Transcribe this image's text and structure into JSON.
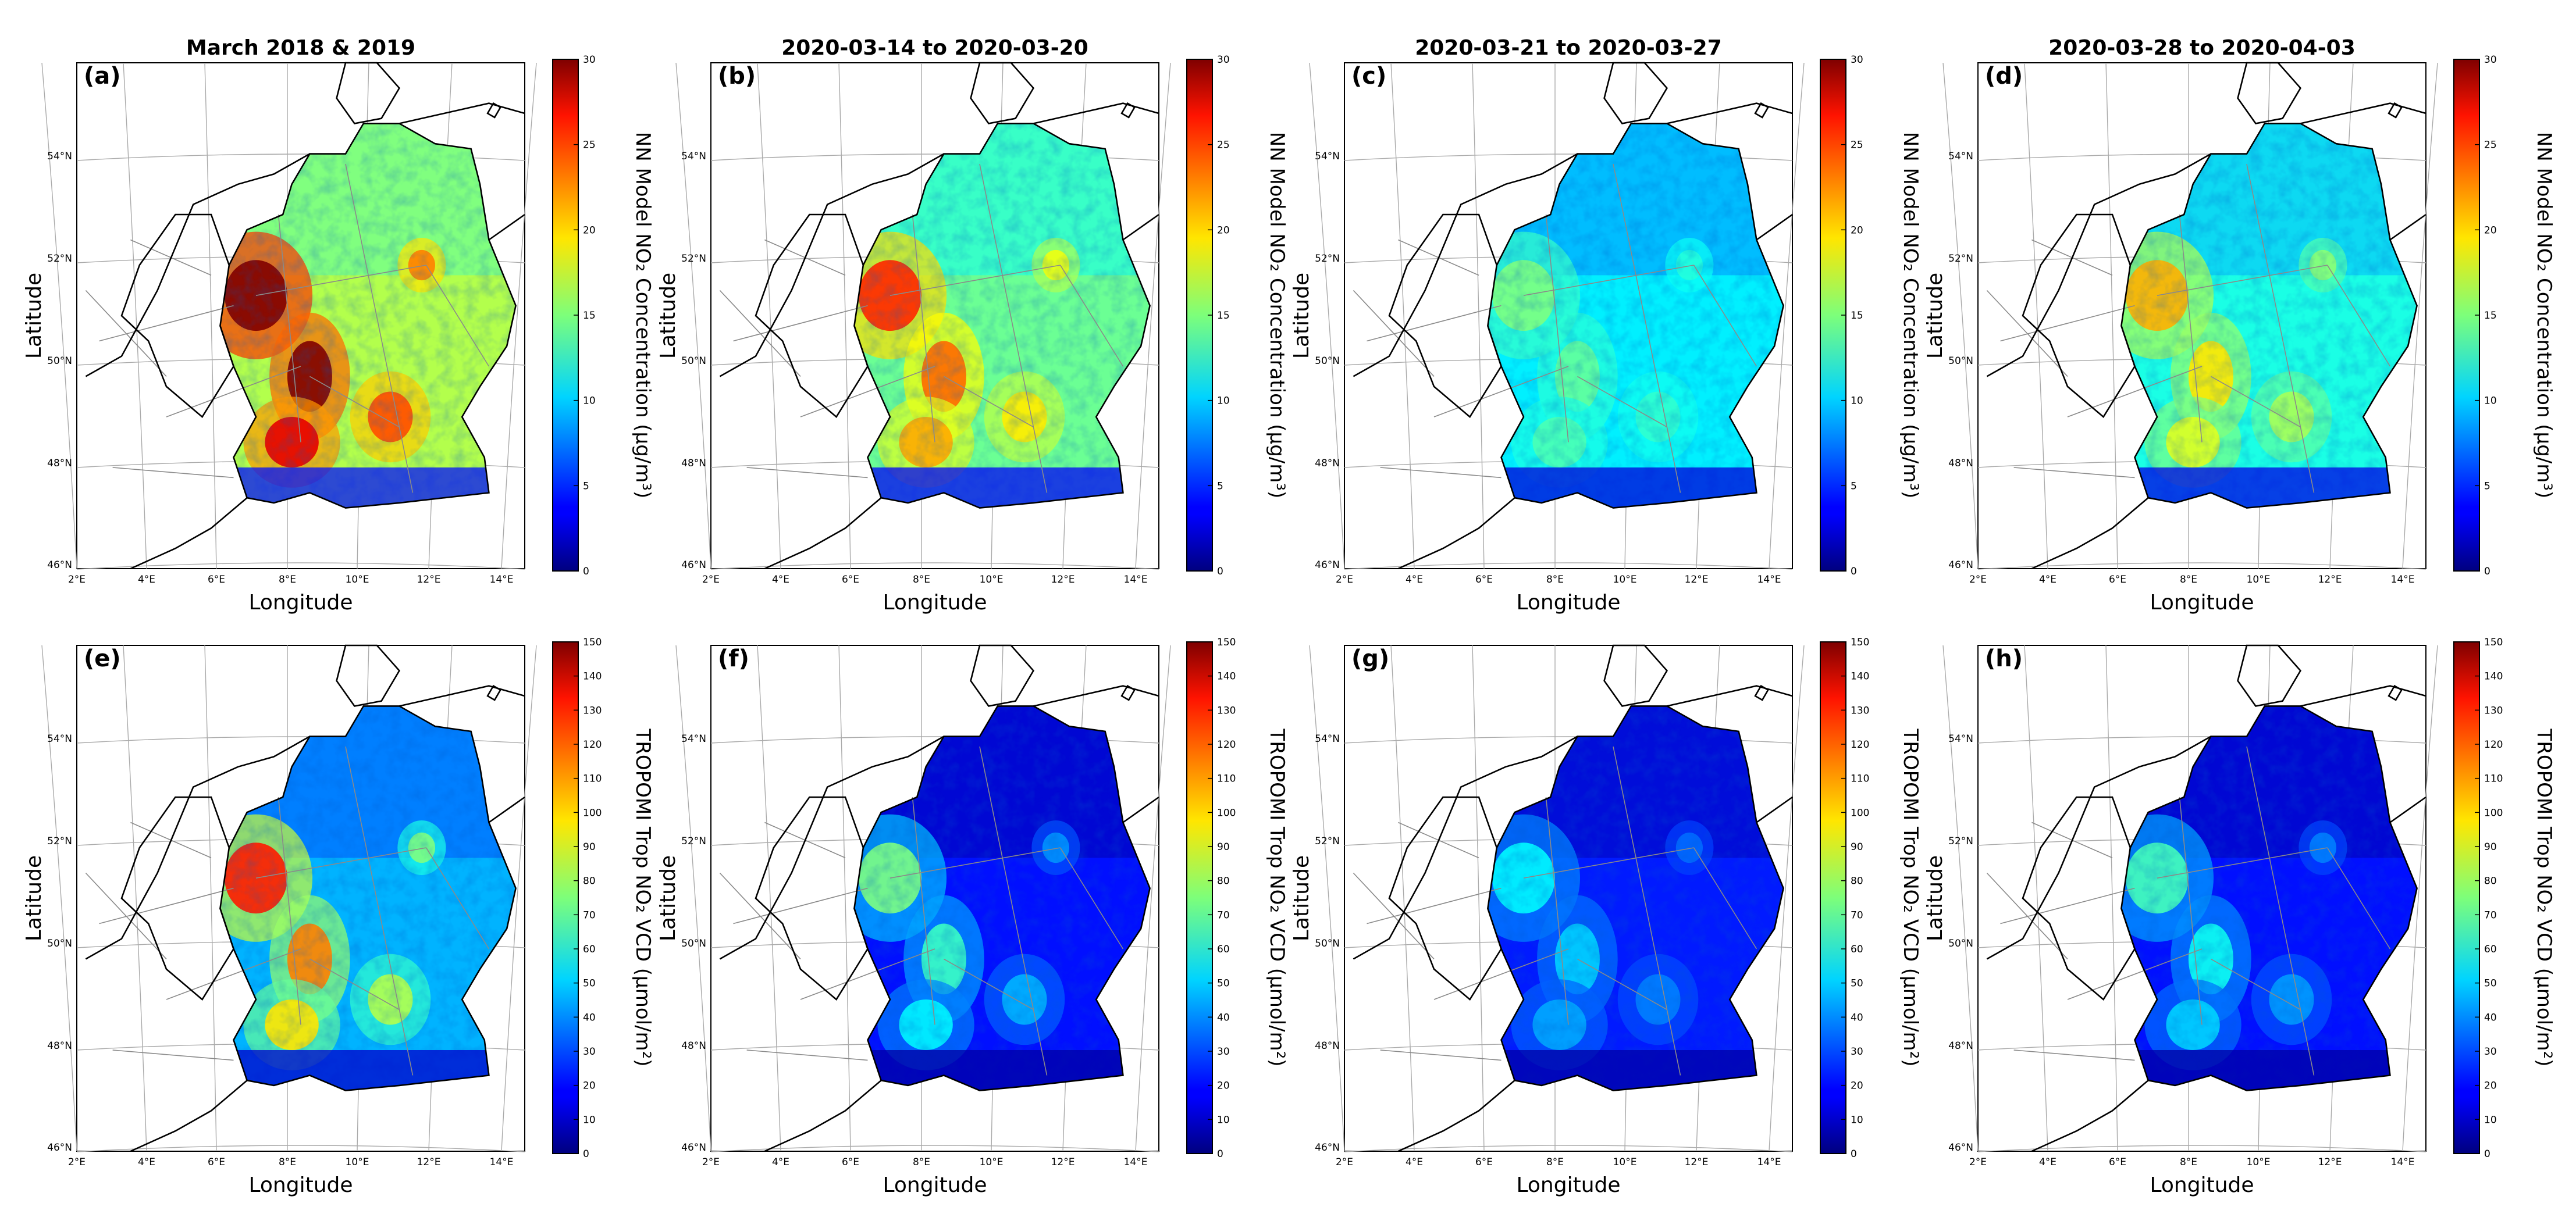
{
  "figure": {
    "xlabel": "Longitude",
    "ylabel": "Latitude",
    "lon_ticks": [
      "2°E",
      "4°E",
      "6°E",
      "8°E",
      "10°E",
      "12°E",
      "14°E"
    ],
    "lat_ticks": [
      "46°N",
      "48°N",
      "50°N",
      "52°N",
      "54°N"
    ],
    "colors": {
      "border": "#000000",
      "grid": "#aaaaaa",
      "roads": "#8a8a8a",
      "no_data": "#ffffff"
    }
  },
  "rows": [
    {
      "colorbar_label": "NN Model NO₂ Concentration (μg/m³)",
      "colorbar_ticks": [
        "0",
        "5",
        "10",
        "15",
        "20",
        "25",
        "30"
      ],
      "colorbar_range": [
        0,
        30
      ]
    },
    {
      "colorbar_label": "TROPOMI Trop NO₂ VCD (μmol/m²)",
      "colorbar_ticks": [
        "0",
        "10",
        "20",
        "30",
        "40",
        "50",
        "60",
        "70",
        "80",
        "90",
        "100",
        "110",
        "120",
        "130",
        "140",
        "150"
      ],
      "colorbar_range": [
        0,
        150
      ]
    }
  ],
  "panels": [
    {
      "label": "(a)",
      "title": "March 2018 & 2019",
      "row": 0,
      "col": 0,
      "level": 0.55,
      "hot": 1.0
    },
    {
      "label": "(b)",
      "title": "2020-03-14 to 2020-03-20",
      "row": 0,
      "col": 1,
      "level": 0.48,
      "hot": 0.65
    },
    {
      "label": "(c)",
      "title": "2020-03-21 to 2020-03-27",
      "row": 0,
      "col": 2,
      "level": 0.36,
      "hot": 0.25
    },
    {
      "label": "(d)",
      "title": "2020-03-28 to 2020-04-03",
      "row": 0,
      "col": 3,
      "level": 0.4,
      "hot": 0.55
    },
    {
      "label": "(e)",
      "title": "",
      "row": 1,
      "col": 0,
      "level": 0.3,
      "hot": 1.0
    },
    {
      "label": "(f)",
      "title": "",
      "row": 1,
      "col": 1,
      "level": 0.14,
      "hot": 0.65
    },
    {
      "label": "(g)",
      "title": "",
      "row": 1,
      "col": 2,
      "level": 0.15,
      "hot": 0.4
    },
    {
      "label": "(h)",
      "title": "",
      "row": 1,
      "col": 3,
      "level": 0.14,
      "hot": 0.55
    }
  ]
}
